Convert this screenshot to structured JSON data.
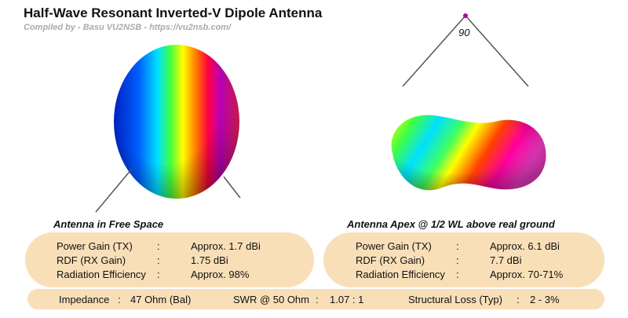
{
  "header": {
    "title": "Half-Wave Resonant Inverted-V Dipole Antenna",
    "subtitle": "Compiled by - Basu VU2NSB - https://vu2nsb.com/"
  },
  "angle_label": "90",
  "free_space": {
    "caption": "Antenna in Free Space",
    "rows": [
      [
        "Power Gain (TX)",
        ":",
        "Approx. 1.7 dBi"
      ],
      [
        "RDF (RX Gain)",
        ":",
        "1.75 dBi"
      ],
      [
        "Radiation Efficiency",
        ":",
        "Approx. 98%"
      ]
    ]
  },
  "above_ground": {
    "caption": "Antenna Apex @ 1/2 WL above real ground",
    "rows": [
      [
        "Power Gain (TX)",
        ":",
        "Approx. 6.1 dBi"
      ],
      [
        "RDF (RX Gain)",
        ":",
        "7.7 dBi"
      ],
      [
        "Radiation Efficiency",
        ":",
        "Approx. 70-71%"
      ]
    ]
  },
  "summary": [
    [
      "Impedance",
      ":",
      "47 Ohm (Bal)"
    ],
    [
      "SWR @ 50 Ohm",
      ":",
      "1.07 : 1"
    ],
    [
      "Structural Loss (Typ)",
      ":",
      "2 - 3%"
    ]
  ]
}
